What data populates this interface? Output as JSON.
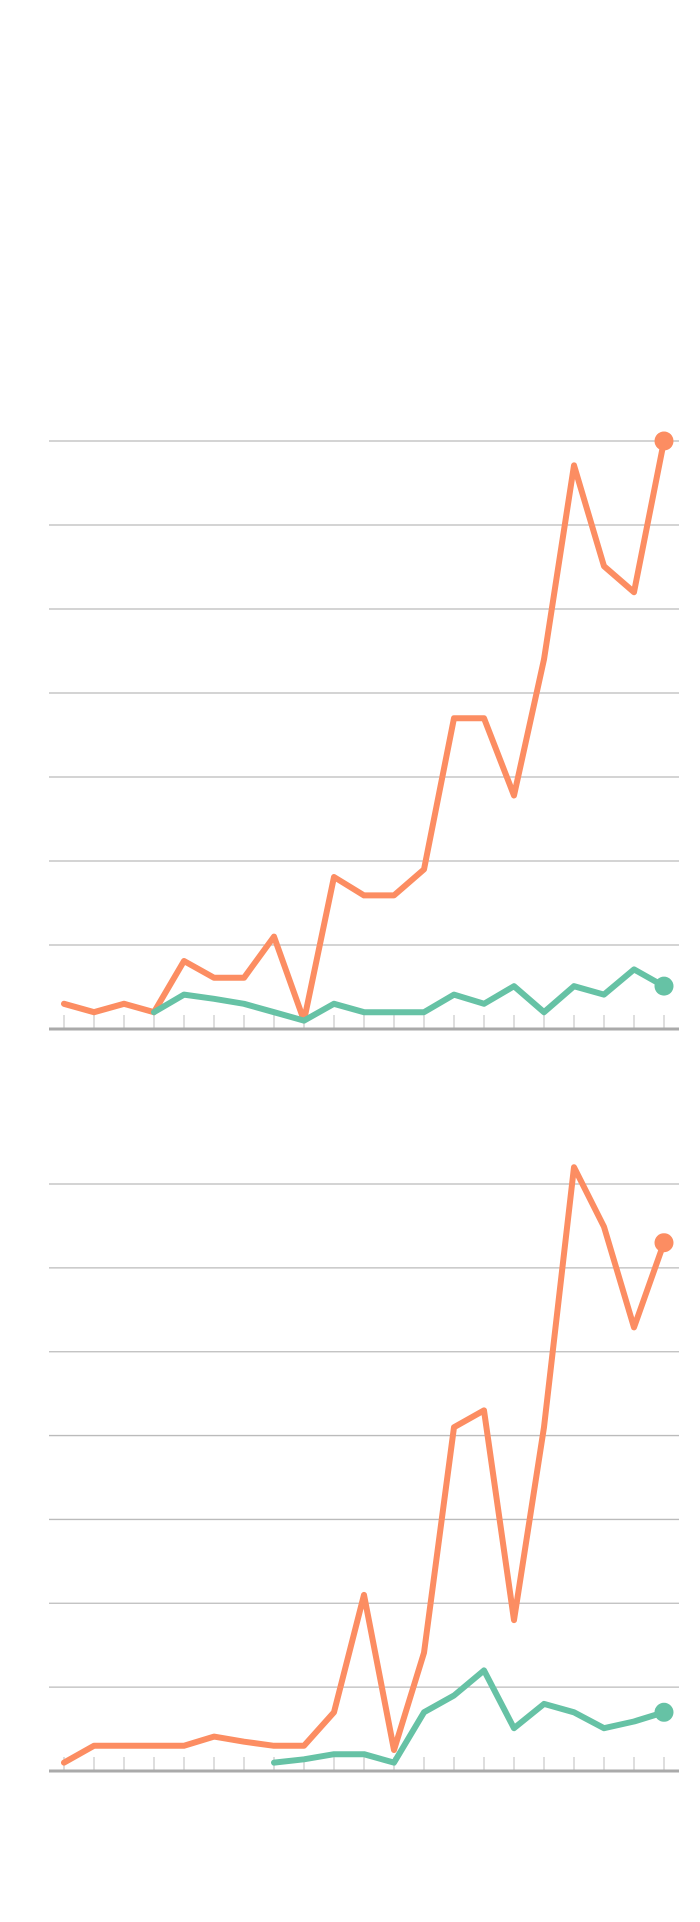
{
  "chart_data": [
    {
      "type": "line",
      "categories": [
        null,
        null,
        null,
        null,
        null,
        null,
        null,
        null,
        null,
        null,
        null,
        null,
        null,
        null,
        null,
        null,
        null,
        null,
        null,
        null,
        null
      ],
      "series": [
        {
          "color": "#fc8d62",
          "values": [
            0.3,
            0.2,
            0.3,
            0.2,
            0.81,
            0.61,
            0.61,
            1.1,
            0.1,
            1.81,
            1.59,
            1.59,
            1.9,
            3.7,
            3.7,
            2.78,
            4.4,
            6.71,
            5.51,
            5.2,
            7.0
          ]
        },
        {
          "color": "#66c2a5",
          "values": [
            null,
            null,
            null,
            0.2,
            0.41,
            0.36,
            0.3,
            0.2,
            0.1,
            0.3,
            0.2,
            0.2,
            0.2,
            0.41,
            0.3,
            0.51,
            0.2,
            0.51,
            0.41,
            0.71,
            0.51
          ]
        }
      ],
      "ylim": [
        0,
        7
      ],
      "yticks": [
        1,
        2,
        3,
        4,
        5,
        6,
        7
      ],
      "grid": true
    },
    {
      "type": "line",
      "categories": [
        null,
        null,
        null,
        null,
        null,
        null,
        null,
        null,
        null,
        null,
        null,
        null,
        null,
        null,
        null,
        null,
        null,
        null,
        null,
        null,
        null
      ],
      "series": [
        {
          "color": "#fc8d62",
          "values": [
            0.1,
            0.3,
            0.3,
            0.3,
            0.3,
            0.41,
            0.35,
            0.3,
            0.3,
            0.7,
            2.1,
            0.25,
            1.41,
            4.1,
            4.3,
            1.8,
            4.1,
            7.2,
            6.49,
            5.29,
            6.3
          ]
        },
        {
          "color": "#66c2a5",
          "values": [
            null,
            null,
            null,
            null,
            null,
            null,
            null,
            0.1,
            0.14,
            0.2,
            0.2,
            0.1,
            0.7,
            0.9,
            1.2,
            0.51,
            0.8,
            0.7,
            0.51,
            0.59,
            0.7
          ]
        }
      ],
      "ylim": [
        0,
        7
      ],
      "yticks": [
        1,
        2,
        3,
        4,
        5,
        6,
        7
      ],
      "grid": true
    }
  ]
}
